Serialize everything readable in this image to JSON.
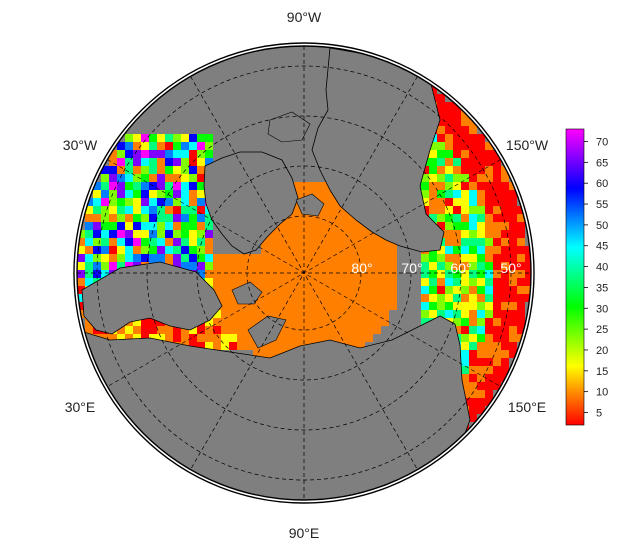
{
  "map": {
    "projection": "north-polar-stereographic",
    "ocean_fill": "#7f7f7f",
    "land_fill": "#7f7f7f",
    "border_color": "#000000",
    "graticule_style": "dashed",
    "longitude_labels": {
      "top": "90°W",
      "left_upper": "30°W",
      "right_upper": "150°W",
      "left_lower": "30°E",
      "right_lower": "150°E",
      "bottom": "90°E"
    },
    "latitude_labels": [
      "80°",
      "70°",
      "60°",
      "50°"
    ]
  },
  "colorbar": {
    "ticks": [
      "5",
      "10",
      "15",
      "20",
      "25",
      "30",
      "35",
      "40",
      "45",
      "50",
      "55",
      "60",
      "65",
      "70"
    ],
    "min": 2,
    "max": 73,
    "colors": [
      "#ff0000",
      "#ff7f00",
      "#ffff00",
      "#7fff00",
      "#00ff00",
      "#00ff7f",
      "#00ffff",
      "#0080ff",
      "#0000ff",
      "#8000ff",
      "#ff00ff"
    ]
  }
}
